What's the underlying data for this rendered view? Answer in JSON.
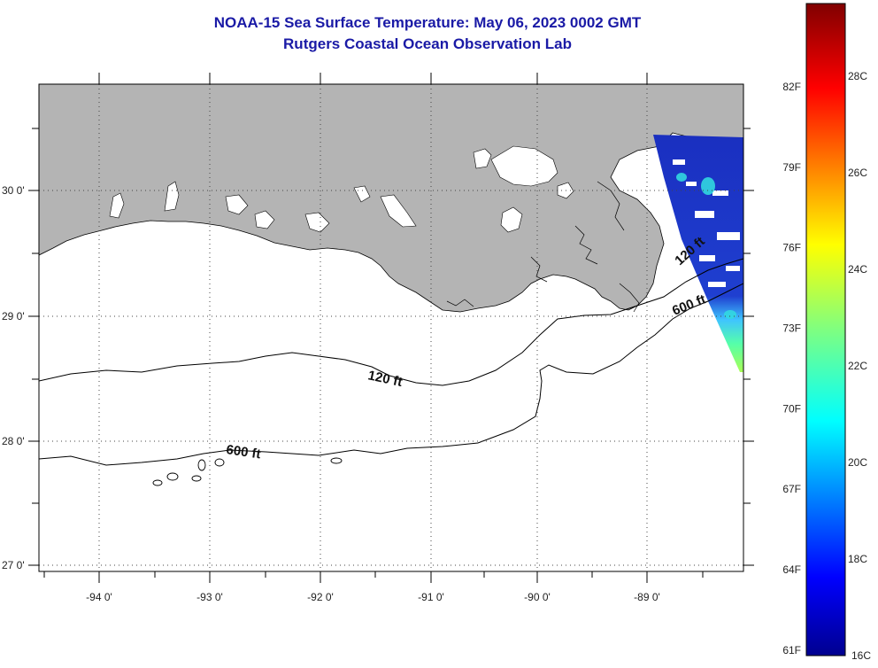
{
  "title": {
    "line1": "NOAA-15 Sea Surface Temperature:  May 06, 2023 0002 GMT",
    "line2": "Rutgers Coastal Ocean Observation Lab"
  },
  "map": {
    "land_color": "#b4b4b4",
    "ocean_color": "#ffffff",
    "cloud_color": "#ffffff",
    "lon_labels": [
      "-94 0'",
      "-93 0'",
      "-92 0'",
      "-91 0'",
      "-90 0'",
      "-89 0'"
    ],
    "lat_labels": [
      "30 0'",
      "29 0'",
      "28 0'",
      "27 0'"
    ],
    "contours": [
      {
        "label": "120 ft"
      },
      {
        "label": "600 ft"
      }
    ]
  },
  "colorbar": {
    "colormap": "jet",
    "fahrenheit_labels": [
      "82F",
      "79F",
      "76F",
      "73F",
      "70F",
      "67F",
      "64F",
      "61F"
    ],
    "celsius_labels": [
      "28C",
      "26C",
      "24C",
      "22C",
      "20C",
      "18C",
      "16C"
    ],
    "fahrenheit_values": [
      82,
      79,
      76,
      73,
      70,
      67,
      64,
      61
    ],
    "celsius_values": [
      28,
      26,
      24,
      22,
      20,
      18,
      16
    ],
    "min_c": 16,
    "max_c": 29.5
  }
}
